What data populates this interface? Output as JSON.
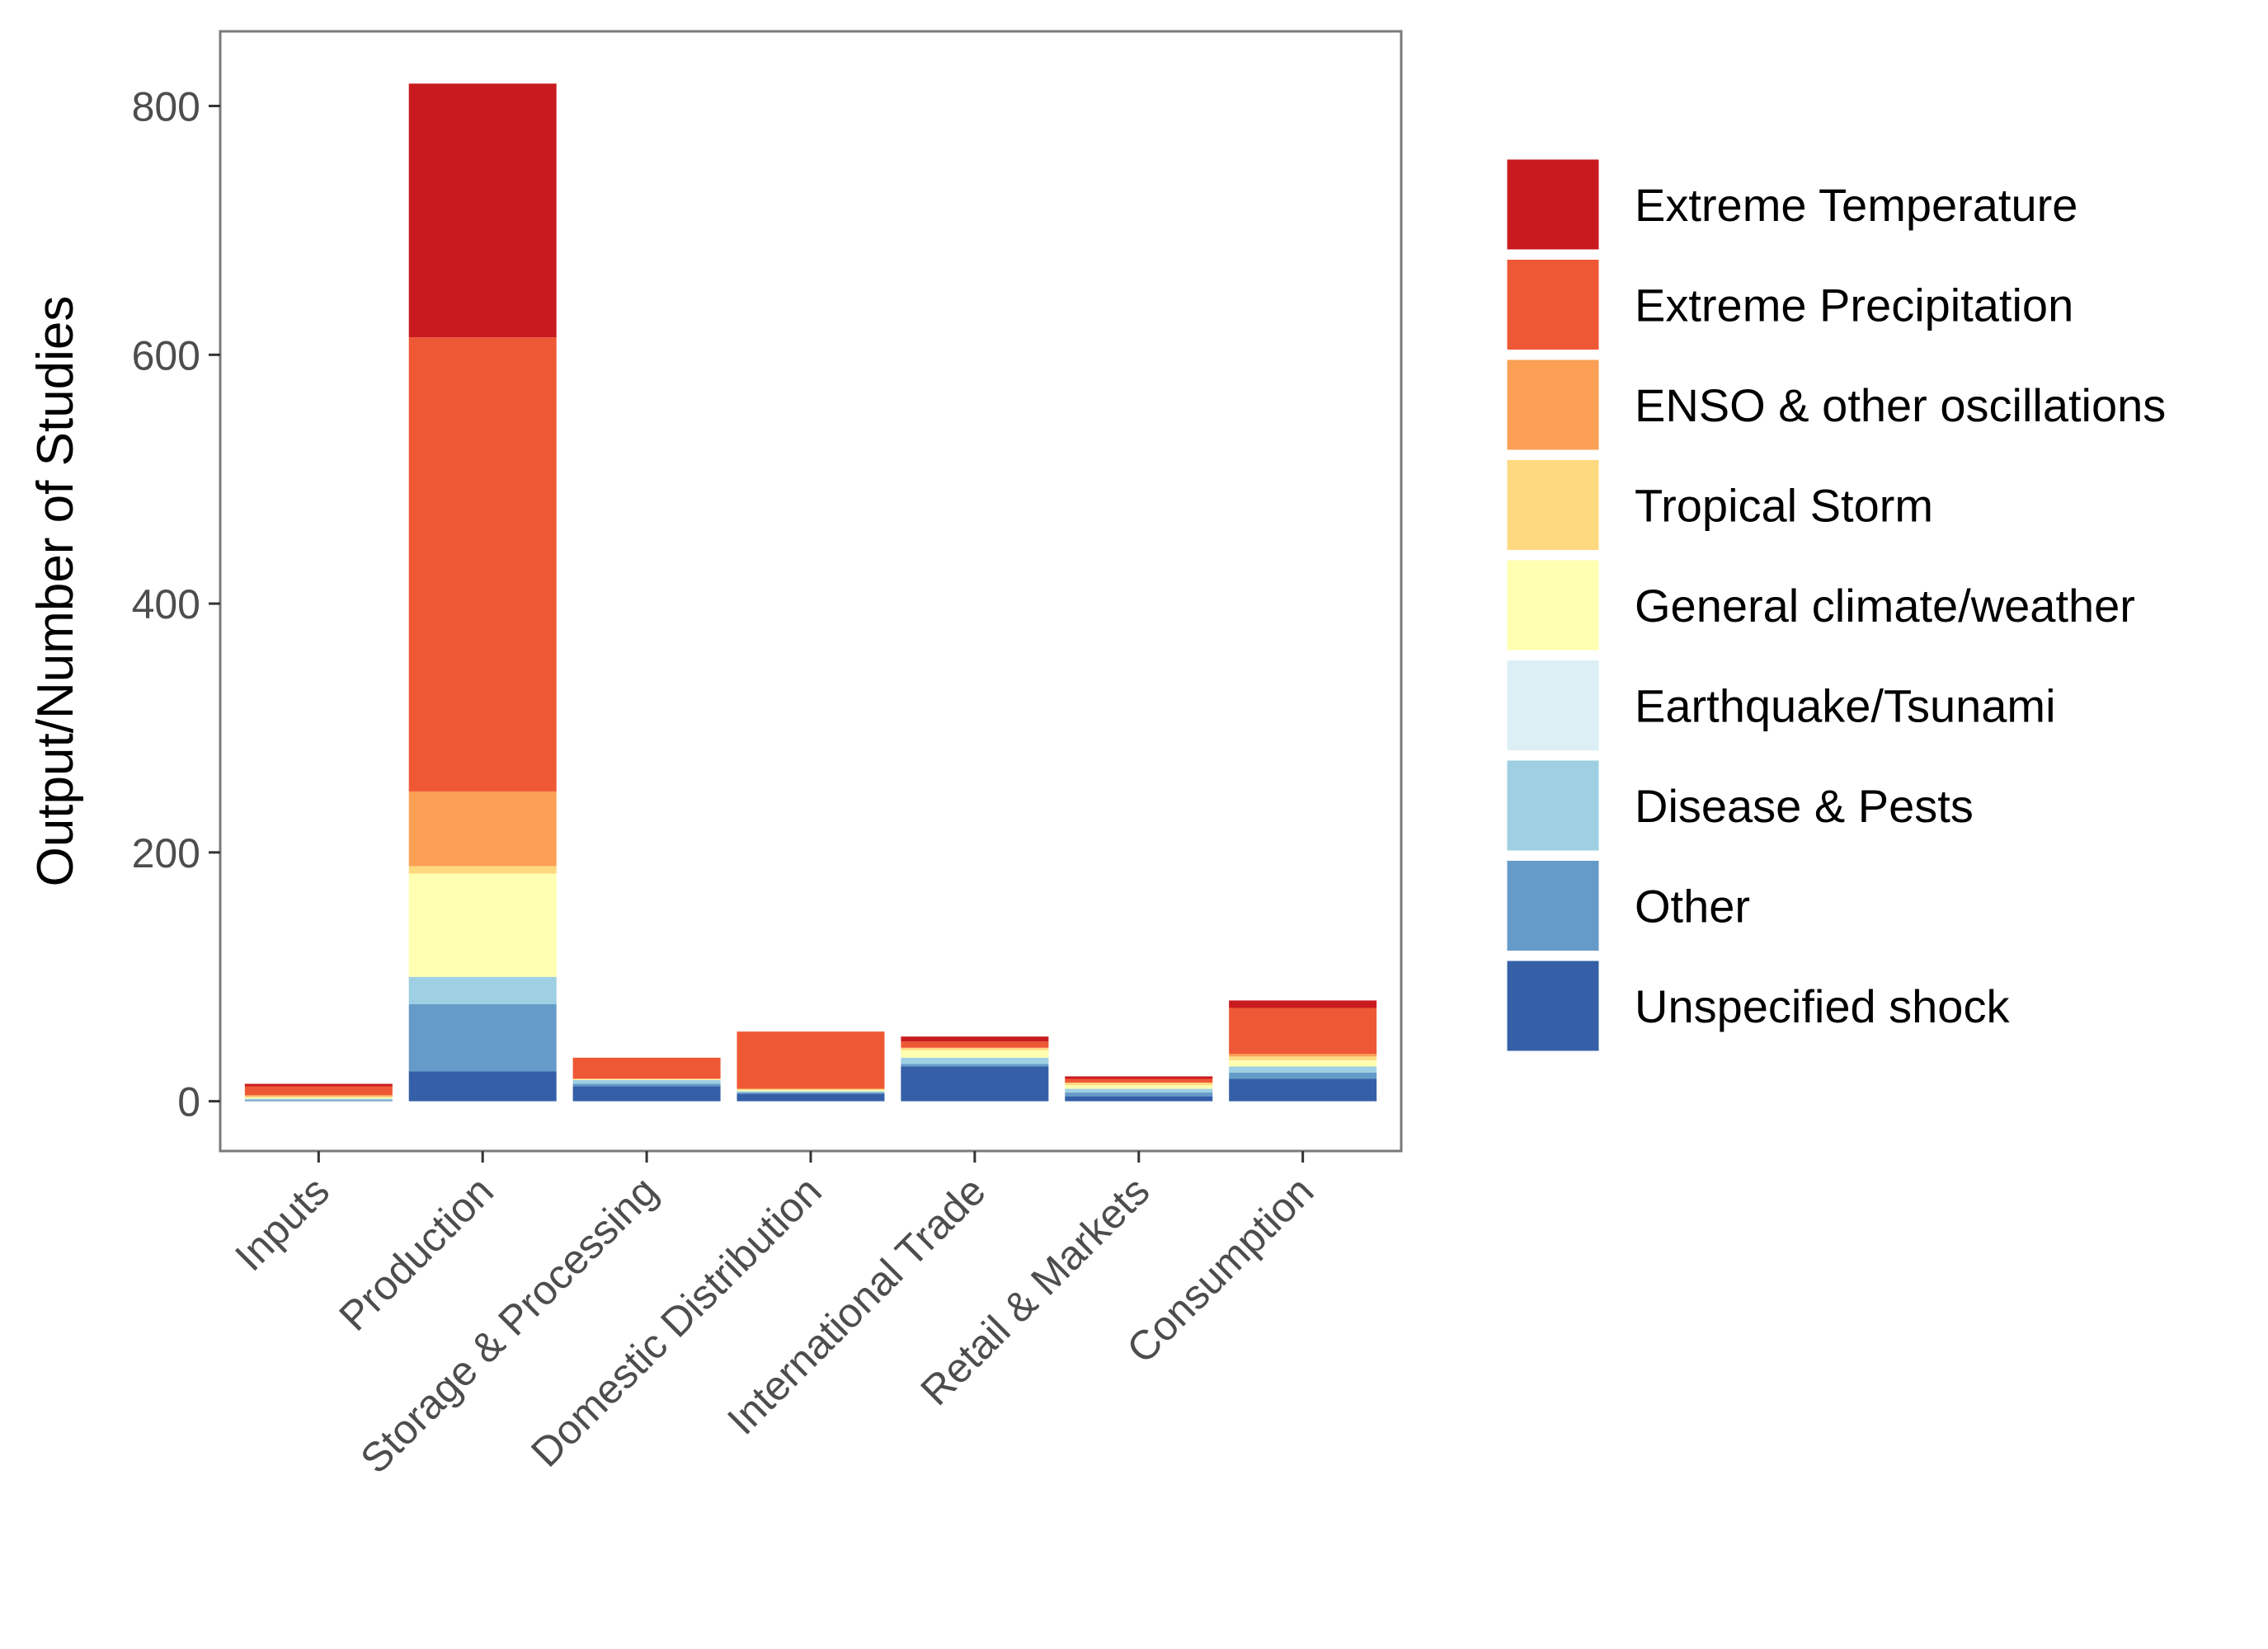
{
  "chart_data": {
    "type": "bar",
    "stacked": true,
    "title": "",
    "xlabel": "",
    "ylabel": "Output/Number of Studies",
    "ylim": [
      -40,
      860
    ],
    "yticks": [
      0,
      200,
      400,
      600,
      800
    ],
    "grid": false,
    "legend_position": "right",
    "categories": [
      "Inputs",
      "Production",
      "Storage & Processing",
      "Domestic Distribution",
      "International Trade",
      "Retail & Markets",
      "Consumption"
    ],
    "series": [
      {
        "name": "Unspecified shock",
        "color": "#3560a8",
        "values": [
          0,
          24,
          12,
          6,
          28,
          4,
          18
        ]
      },
      {
        "name": "Other",
        "color": "#659bc8",
        "values": [
          1,
          54,
          2,
          1,
          2,
          3,
          5
        ]
      },
      {
        "name": "Disease & Pests",
        "color": "#9ecfe2",
        "values": [
          1,
          22,
          3,
          1,
          5,
          3,
          5
        ]
      },
      {
        "name": "Earthquake/Tsunami",
        "color": "#dbeff5",
        "values": [
          0,
          0,
          0,
          0,
          0,
          0,
          0
        ]
      },
      {
        "name": "General climate/weather",
        "color": "#ffffb2",
        "values": [
          1,
          83,
          1,
          1,
          6,
          3,
          5
        ]
      },
      {
        "name": "Tropical Storm",
        "color": "#fed980",
        "values": [
          1,
          6,
          0,
          1,
          2,
          2,
          3
        ]
      },
      {
        "name": "ENSO & other oscillations",
        "color": "#fba054",
        "values": [
          1,
          60,
          0,
          0,
          0,
          0,
          2
        ]
      },
      {
        "name": "Extreme Precipitation",
        "color": "#ef5835",
        "values": [
          7,
          365,
          17,
          46,
          5,
          3,
          37
        ]
      },
      {
        "name": "Extreme Temperature",
        "color": "#c91b1f",
        "values": [
          2,
          204,
          0,
          0,
          4,
          2,
          6
        ]
      }
    ]
  }
}
